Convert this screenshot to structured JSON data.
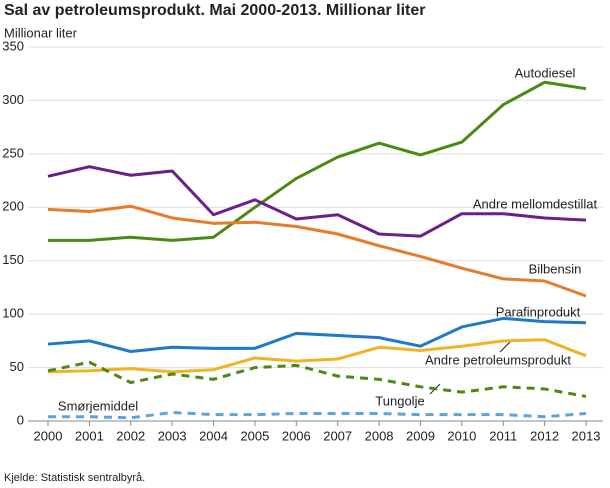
{
  "chart_data": {
    "type": "line",
    "title": "Sal av petroleumsprodukt. Mai 2000-2013. Millionar liter",
    "y_label": "Millionar liter",
    "source": "Kjelde: Statistisk sentralbyrå.",
    "categories": [
      "2000",
      "2001",
      "2002",
      "2003",
      "2004",
      "2005",
      "2006",
      "2007",
      "2008",
      "2009",
      "2010",
      "2011",
      "2012",
      "2013"
    ],
    "ylim": [
      0,
      350
    ],
    "yticks": [
      0,
      50,
      100,
      150,
      200,
      250,
      300,
      350
    ],
    "grid": true,
    "series": [
      {
        "name": "Autodiesel",
        "color": "#4a8a13",
        "dashed": false,
        "values": [
          169,
          169,
          172,
          169,
          172,
          200,
          227,
          247,
          260,
          249,
          261,
          296,
          317,
          311
        ]
      },
      {
        "name": "Andre mellomdestillat",
        "color": "#6b1f8a",
        "dashed": false,
        "values": [
          229,
          238,
          230,
          234,
          193,
          207,
          189,
          193,
          175,
          173,
          194,
          194,
          190,
          188
        ]
      },
      {
        "name": "Bilbensin",
        "color": "#e87b27",
        "dashed": false,
        "values": [
          198,
          196,
          201,
          190,
          185,
          186,
          182,
          175,
          164,
          154,
          143,
          133,
          131,
          117
        ]
      },
      {
        "name": "Parafinprodukt",
        "color": "#1f78c8",
        "dashed": false,
        "values": [
          72,
          75,
          65,
          69,
          68,
          68,
          82,
          80,
          78,
          70,
          88,
          96,
          93,
          92
        ]
      },
      {
        "name": "Andre petroleumsprodukt",
        "color": "#f0b323",
        "dashed": false,
        "values": [
          46,
          47,
          49,
          46,
          48,
          59,
          56,
          58,
          69,
          66,
          70,
          75,
          76,
          61
        ]
      },
      {
        "name": "Tungolje",
        "color": "#4a8a13",
        "dashed": true,
        "values": [
          47,
          55,
          36,
          44,
          39,
          50,
          52,
          42,
          39,
          32,
          27,
          32,
          30,
          23
        ]
      },
      {
        "name": "Smørjemiddel",
        "color": "#5ba4e0",
        "dashed": true,
        "values": [
          4,
          4,
          3,
          8,
          6,
          6,
          7,
          7,
          7,
          6,
          6,
          6,
          4,
          7
        ]
      }
    ]
  }
}
